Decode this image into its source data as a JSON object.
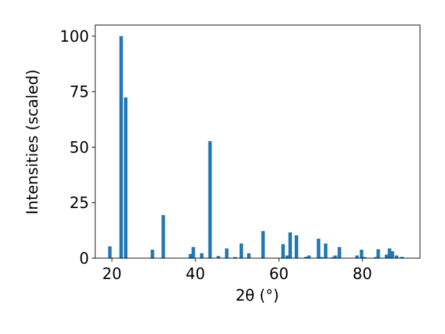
{
  "chart_data": {
    "type": "bar",
    "xlabel": "2θ (°)",
    "ylabel": "Intensities (scaled)",
    "x": [
      19.5,
      22.2,
      23.3,
      29.7,
      32.3,
      38.8,
      39.5,
      41.5,
      43.5,
      45.5,
      47.5,
      49.5,
      51,
      52.8,
      56.2,
      61,
      62,
      62.7,
      64.2,
      66.5,
      67.2,
      69.5,
      70.2,
      71.2,
      73,
      73.5,
      74.5,
      78.7,
      79.8,
      80.5,
      83.2,
      83.8,
      85.8,
      86.5,
      87.2,
      88.2,
      89.5
    ],
    "values": [
      5.3,
      100,
      72.4,
      3.8,
      19.4,
      1.9,
      5,
      2.2,
      52.7,
      1,
      4.4,
      0.5,
      6.6,
      2.2,
      12.2,
      6.3,
      1.2,
      11.6,
      10.3,
      0.6,
      1.2,
      8.8,
      0.5,
      6.6,
      0.5,
      1.2,
      5,
      1.2,
      3.8,
      0.5,
      0.5,
      4,
      1.6,
      4.4,
      3.1,
      1.2,
      0.6
    ],
    "color": "#1f77b4",
    "xlim": [
      16,
      93.8
    ],
    "xticks": [
      20,
      40,
      60,
      80
    ],
    "ylim": [
      0,
      105
    ],
    "yticks": [
      0,
      25,
      50,
      75,
      100
    ]
  }
}
